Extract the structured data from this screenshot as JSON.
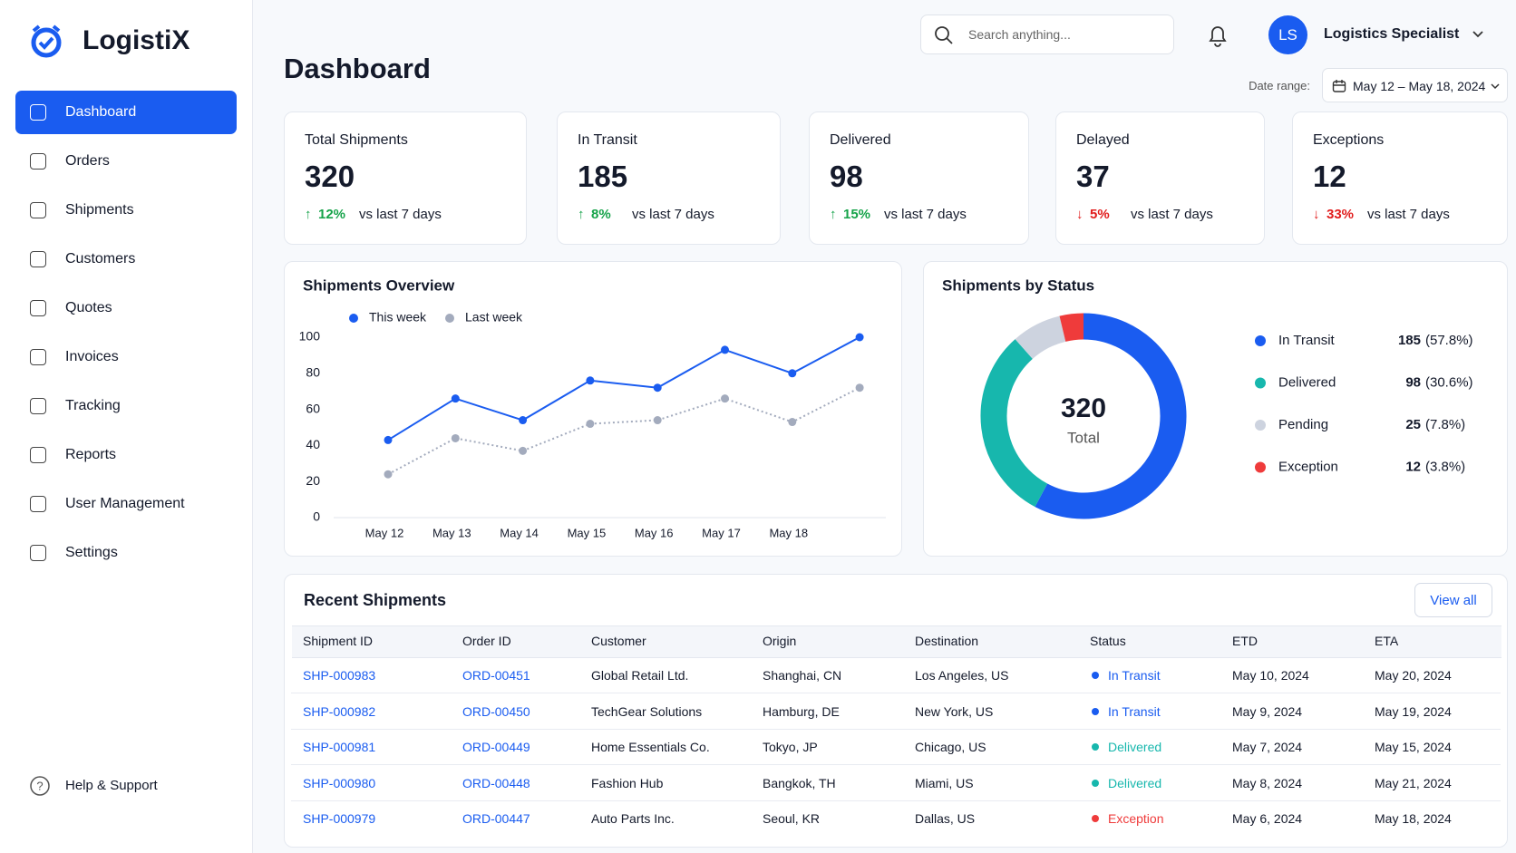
{
  "brand": "LogistiX",
  "nav": [
    "Dashboard",
    "Orders",
    "Shipments",
    "Customers",
    "Quotes",
    "Invoices",
    "Tracking",
    "Reports",
    "User Management",
    "Settings"
  ],
  "nav_active": 0,
  "help": "Help & Support",
  "search_placeholder": "Search anything...",
  "user": {
    "initials": "LS",
    "name": "Logistics Specialist"
  },
  "page_title": "Dashboard",
  "date_range": {
    "label": "Date range:",
    "value": "May 12 – May 18, 2024"
  },
  "kpis": [
    {
      "title": "Total Shipments",
      "value": 320,
      "change": "12%",
      "direction": "up",
      "comparison": "vs last 7 days"
    },
    {
      "title": "In Transit",
      "value": 185,
      "change": "8%",
      "direction": "up",
      "comparison": "vs last 7 days"
    },
    {
      "title": "Delivered",
      "value": 98,
      "change": "15%",
      "direction": "up",
      "comparison": "vs last 7 days"
    },
    {
      "title": "Delayed",
      "value": 37,
      "change": "5%",
      "direction": "down",
      "comparison": "vs last 7 days"
    },
    {
      "title": "Exceptions",
      "value": 12,
      "change": "33%",
      "direction": "down",
      "comparison": "vs last 7 days"
    }
  ],
  "shipments_overview": {
    "type": "line",
    "title": "Shipments Overview",
    "categories": [
      "May 12",
      "May 13",
      "May 14",
      "May 15",
      "May 16",
      "May 17",
      "May 18",
      null
    ],
    "series": [
      {
        "name": "This week",
        "color": "#1a5cf0",
        "style": "solid",
        "values": [
          43,
          66,
          54,
          76,
          72,
          93,
          80,
          100
        ]
      },
      {
        "name": "Last week",
        "color": "#a3abbd",
        "style": "dotted",
        "values": [
          24,
          44,
          37,
          52,
          54,
          66,
          53,
          72
        ]
      }
    ],
    "ylim": [
      0,
      100
    ],
    "yticks": [
      0,
      20,
      40,
      60,
      80,
      100
    ],
    "grid": false
  },
  "shipments_by_status": {
    "type": "pie",
    "title": "Shipments by Status",
    "center_value": 320,
    "center_label": "Total",
    "categories": [
      "In Transit",
      "Delivered",
      "Pending",
      "Exception"
    ],
    "values": [
      185,
      98,
      25,
      12
    ],
    "percent_labels": [
      "(57.8%)",
      "(30.6%)",
      "(7.8%)",
      "(3.8%)"
    ],
    "colors": [
      "#1a5cf0",
      "#17b7ad",
      "#cdd3df",
      "#ef3b3b"
    ]
  },
  "recent_shipments": {
    "title": "Recent Shipments",
    "action": "View all",
    "columns": [
      "Shipment ID",
      "Order ID",
      "Customer",
      "Origin",
      "Destination",
      "Status",
      "ETD",
      "ETA"
    ],
    "rows": [
      [
        "SHP-000983",
        "ORD-00451",
        "Global Retail Ltd.",
        "Shanghai, CN",
        "Los Angeles, US",
        "In Transit",
        "May 10, 2024",
        "May 20, 2024"
      ],
      [
        "SHP-000982",
        "ORD-00450",
        "TechGear Solutions",
        "Hamburg, DE",
        "New York, US",
        "In Transit",
        "May 9, 2024",
        "May 19, 2024"
      ],
      [
        "SHP-000981",
        "ORD-00449",
        "Home Essentials Co.",
        "Tokyo, JP",
        "Chicago, US",
        "Delivered",
        "May 7, 2024",
        "May 15, 2024"
      ],
      [
        "SHP-000980",
        "ORD-00448",
        "Fashion Hub",
        "Bangkok, TH",
        "Miami, US",
        "Delivered",
        "May 8, 2024",
        "May 21, 2024"
      ],
      [
        "SHP-000979",
        "ORD-00447",
        "Auto Parts Inc.",
        "Seoul, KR",
        "Dallas, US",
        "Exception",
        "May 6, 2024",
        "May 18, 2024"
      ]
    ],
    "status_colors": [
      "#1a5cf0",
      "#1a5cf0",
      "#17b7ad",
      "#17b7ad",
      "#ef3b3b"
    ]
  }
}
